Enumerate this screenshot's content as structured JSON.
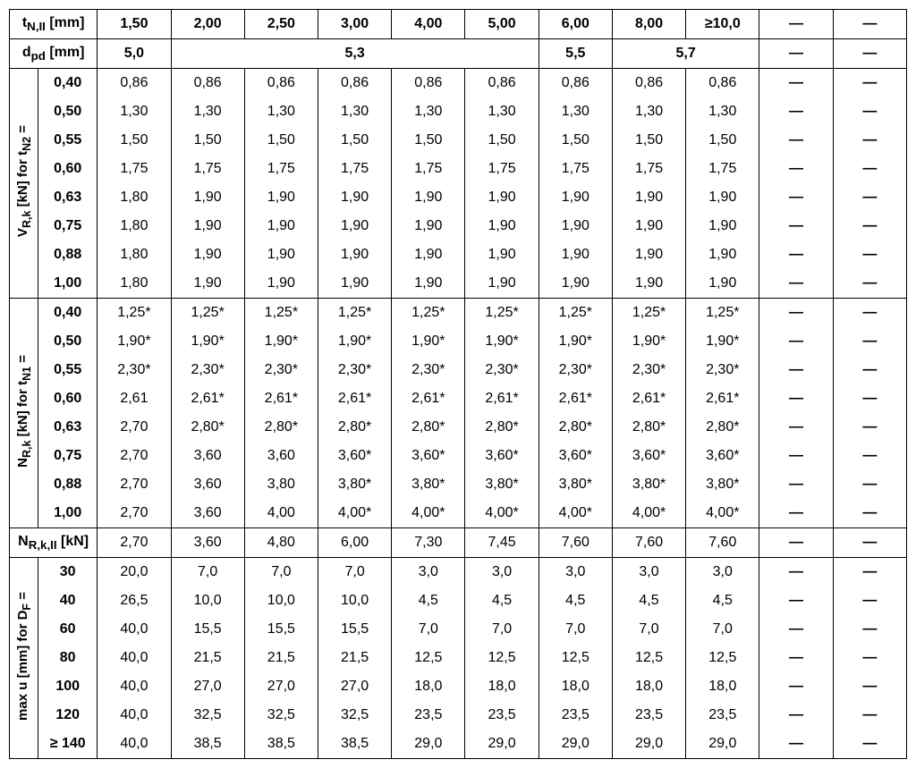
{
  "colors": {
    "border": "#000000",
    "bg": "#ffffff",
    "text": "#000000"
  },
  "dash": "—",
  "headers": {
    "tN": "t<sub>N,II</sub> [mm]",
    "dpd": "d<sub>pd</sub> [mm]",
    "NRkII": "N<sub>R,k,II</sub> [kN]"
  },
  "tN_values": [
    "1,50",
    "2,00",
    "2,50",
    "3,00",
    "4,00",
    "5,00",
    "6,00",
    "8,00",
    "≥10,0"
  ],
  "dpd_groups": [
    {
      "label": "5,0",
      "span": 1
    },
    {
      "label": "5,3",
      "span": 5
    },
    {
      "label": "5,5",
      "span": 1
    },
    {
      "label": "5,7",
      "span": 2
    }
  ],
  "sections": [
    {
      "vlabel": "V<sub>R,k</sub> [kN] for t<sub>N2</sub> =",
      "rows": [
        {
          "lbl": "0,40",
          "vals": [
            "0,86",
            "0,86",
            "0,86",
            "0,86",
            "0,86",
            "0,86",
            "0,86",
            "0,86",
            "0,86"
          ]
        },
        {
          "lbl": "0,50",
          "vals": [
            "1,30",
            "1,30",
            "1,30",
            "1,30",
            "1,30",
            "1,30",
            "1,30",
            "1,30",
            "1,30"
          ]
        },
        {
          "lbl": "0,55",
          "vals": [
            "1,50",
            "1,50",
            "1,50",
            "1,50",
            "1,50",
            "1,50",
            "1,50",
            "1,50",
            "1,50"
          ]
        },
        {
          "lbl": "0,60",
          "vals": [
            "1,75",
            "1,75",
            "1,75",
            "1,75",
            "1,75",
            "1,75",
            "1,75",
            "1,75",
            "1,75"
          ]
        },
        {
          "lbl": "0,63",
          "vals": [
            "1,80",
            "1,90",
            "1,90",
            "1,90",
            "1,90",
            "1,90",
            "1,90",
            "1,90",
            "1,90"
          ]
        },
        {
          "lbl": "0,75",
          "vals": [
            "1,80",
            "1,90",
            "1,90",
            "1,90",
            "1,90",
            "1,90",
            "1,90",
            "1,90",
            "1,90"
          ]
        },
        {
          "lbl": "0,88",
          "vals": [
            "1,80",
            "1,90",
            "1,90",
            "1,90",
            "1,90",
            "1,90",
            "1,90",
            "1,90",
            "1,90"
          ]
        },
        {
          "lbl": "1,00",
          "vals": [
            "1,80",
            "1,90",
            "1,90",
            "1,90",
            "1,90",
            "1,90",
            "1,90",
            "1,90",
            "1,90"
          ]
        }
      ]
    },
    {
      "vlabel": "N<sub>R,k</sub> [kN] for t<sub>N1</sub> =",
      "rows": [
        {
          "lbl": "0,40",
          "vals": [
            "1,25*",
            "1,25*",
            "1,25*",
            "1,25*",
            "1,25*",
            "1,25*",
            "1,25*",
            "1,25*",
            "1,25*"
          ]
        },
        {
          "lbl": "0,50",
          "vals": [
            "1,90*",
            "1,90*",
            "1,90*",
            "1,90*",
            "1,90*",
            "1,90*",
            "1,90*",
            "1,90*",
            "1,90*"
          ]
        },
        {
          "lbl": "0,55",
          "vals": [
            "2,30*",
            "2,30*",
            "2,30*",
            "2,30*",
            "2,30*",
            "2,30*",
            "2,30*",
            "2,30*",
            "2,30*"
          ]
        },
        {
          "lbl": "0,60",
          "vals": [
            "2,61",
            "2,61*",
            "2,61*",
            "2,61*",
            "2,61*",
            "2,61*",
            "2,61*",
            "2,61*",
            "2,61*"
          ]
        },
        {
          "lbl": "0,63",
          "vals": [
            "2,70",
            "2,80*",
            "2,80*",
            "2,80*",
            "2,80*",
            "2,80*",
            "2,80*",
            "2,80*",
            "2,80*"
          ]
        },
        {
          "lbl": "0,75",
          "vals": [
            "2,70",
            "3,60",
            "3,60",
            "3,60*",
            "3,60*",
            "3,60*",
            "3,60*",
            "3,60*",
            "3,60*"
          ]
        },
        {
          "lbl": "0,88",
          "vals": [
            "2,70",
            "3,60",
            "3,80",
            "3,80*",
            "3,80*",
            "3,80*",
            "3,80*",
            "3,80*",
            "3,80*"
          ]
        },
        {
          "lbl": "1,00",
          "vals": [
            "2,70",
            "3,60",
            "4,00",
            "4,00*",
            "4,00*",
            "4,00*",
            "4,00*",
            "4,00*",
            "4,00*"
          ]
        }
      ]
    }
  ],
  "NRkII_row": [
    "2,70",
    "3,60",
    "4,80",
    "6,00",
    "7,30",
    "7,45",
    "7,60",
    "7,60",
    "7,60"
  ],
  "maxu": {
    "vlabel": "max u [mm] for D<sub>F</sub> =",
    "rows": [
      {
        "lbl": "30",
        "vals": [
          "20,0",
          "7,0",
          "7,0",
          "7,0",
          "3,0",
          "3,0",
          "3,0",
          "3,0",
          "3,0"
        ]
      },
      {
        "lbl": "40",
        "vals": [
          "26,5",
          "10,0",
          "10,0",
          "10,0",
          "4,5",
          "4,5",
          "4,5",
          "4,5",
          "4,5"
        ]
      },
      {
        "lbl": "60",
        "vals": [
          "40,0",
          "15,5",
          "15,5",
          "15,5",
          "7,0",
          "7,0",
          "7,0",
          "7,0",
          "7,0"
        ]
      },
      {
        "lbl": "80",
        "vals": [
          "40,0",
          "21,5",
          "21,5",
          "21,5",
          "12,5",
          "12,5",
          "12,5",
          "12,5",
          "12,5"
        ]
      },
      {
        "lbl": "100",
        "vals": [
          "40,0",
          "27,0",
          "27,0",
          "27,0",
          "18,0",
          "18,0",
          "18,0",
          "18,0",
          "18,0"
        ]
      },
      {
        "lbl": "120",
        "vals": [
          "40,0",
          "32,5",
          "32,5",
          "32,5",
          "23,5",
          "23,5",
          "23,5",
          "23,5",
          "23,5"
        ]
      },
      {
        "lbl": "≥ 140",
        "vals": [
          "40,0",
          "38,5",
          "38,5",
          "38,5",
          "29,0",
          "29,0",
          "29,0",
          "29,0",
          "29,0"
        ]
      }
    ]
  }
}
